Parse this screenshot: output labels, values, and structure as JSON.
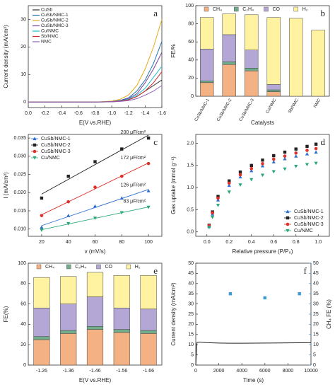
{
  "chart_data": [
    {
      "type": "line",
      "label": "a",
      "xlabel": "E(V vs.RHE)",
      "ylabel": "Current density (mA/cm²)",
      "x": [
        0,
        -0.4,
        -0.8,
        -1.0,
        -1.1,
        -1.2,
        -1.3,
        -1.4,
        -1.5,
        -1.6
      ],
      "xlim": [
        0,
        -1.6
      ],
      "xticks": [
        {
          "value": 0,
          "label": "0.0"
        },
        -0.2,
        -0.4,
        -0.6,
        -0.8,
        {
          "value": -1,
          "label": "-1.0"
        },
        -1.2,
        -1.4,
        -1.6
      ],
      "ylim": [
        -2,
        35
      ],
      "yticks": [
        0,
        10,
        20,
        30
      ],
      "legend": "upper left",
      "series": [
        {
          "name": "CuSb",
          "color": "#333333",
          "values": [
            0,
            0,
            0,
            0.1,
            0.3,
            0.8,
            2,
            4,
            6,
            8
          ]
        },
        {
          "name": "CuSb/NMC-1",
          "color": "#1f77b4",
          "values": [
            0,
            0,
            0,
            0.2,
            0.6,
            1.5,
            4,
            8,
            14,
            22
          ]
        },
        {
          "name": "CuSb/NMC-2",
          "color": "#e6a817",
          "values": [
            0,
            0,
            0,
            0.3,
            1,
            2.5,
            6,
            12,
            20,
            30
          ]
        },
        {
          "name": "CuSb/NMC-3",
          "color": "#7b3fa0",
          "values": [
            0,
            0,
            0,
            0.2,
            0.5,
            1.3,
            3,
            7,
            12,
            18
          ]
        },
        {
          "name": "Cu/NMC",
          "color": "#17becf",
          "values": [
            0,
            0,
            0,
            0.1,
            0.4,
            1,
            2.5,
            5,
            9,
            13
          ]
        },
        {
          "name": "Sb/NMC",
          "color": "#d62728",
          "values": [
            0,
            0,
            0,
            0.1,
            0.3,
            0.8,
            2,
            4,
            7,
            11
          ]
        },
        {
          "name": "NMC",
          "color": "#9467bd",
          "values": [
            0,
            0,
            0,
            0.05,
            0.2,
            0.5,
            1.2,
            2.5,
            4,
            6
          ]
        }
      ]
    },
    {
      "type": "bar",
      "stacked": true,
      "label": "b",
      "xlabel": "Catalysts",
      "ylabel": "FE/%",
      "categories": [
        "CuSb/NMC-1",
        "CuSb/NMC-2",
        "CuSb/NMC-3",
        "Cu/NMC",
        "Sb/NMC",
        "NMC"
      ],
      "ylim": [
        0,
        100
      ],
      "yticks": [
        0,
        20,
        40,
        60,
        80,
        100
      ],
      "legend": "upper center",
      "series": [
        {
          "name": "CH₄",
          "color": "#f4b183",
          "values": [
            15,
            35,
            28,
            5,
            0,
            0
          ]
        },
        {
          "name": "C₂H₄",
          "color": "#70ad8a",
          "values": [
            2,
            3,
            3,
            2,
            0,
            0
          ]
        },
        {
          "name": "CO",
          "color": "#b4a7d6",
          "values": [
            35,
            30,
            20,
            6,
            0,
            0
          ]
        },
        {
          "name": "H₂",
          "color": "#fff2a0",
          "values": [
            35,
            23,
            39,
            74,
            86,
            73
          ]
        }
      ]
    },
    {
      "type": "scatter",
      "fit": true,
      "label": "c",
      "xlabel": "v (mV/s)",
      "ylabel": "I (mA/cm²)",
      "x": [
        20,
        40,
        60,
        80,
        100
      ],
      "xlim": [
        10,
        110
      ],
      "xticks": [
        20,
        40,
        60,
        80,
        100
      ],
      "ylim": [
        0.008,
        0.036
      ],
      "yticks": [
        {
          "value": 0.01,
          "label": "0.010"
        },
        0.015,
        {
          "value": 0.02,
          "label": "0.020"
        },
        0.025,
        {
          "value": 0.03,
          "label": "0.030"
        },
        0.035
      ],
      "legend": "upper left",
      "series": [
        {
          "name": "CuSb/NMC-1",
          "color": "#2e6fd1",
          "marker": "triangle",
          "annotation": "126 μF/cm²",
          "values": [
            0.0105,
            0.0137,
            0.0163,
            0.0185,
            0.0205
          ]
        },
        {
          "name": "CuSb/NMC-2",
          "color": "#222222",
          "marker": "square",
          "annotation": "200 μF/cm²",
          "values": [
            0.0185,
            0.0245,
            0.0285,
            0.032,
            0.035
          ]
        },
        {
          "name": "CuSb/NMC-3",
          "color": "#e0302a",
          "marker": "circle",
          "annotation": "172 μF/cm²",
          "values": [
            0.0137,
            0.0175,
            0.0215,
            0.0245,
            0.028
          ]
        },
        {
          "name": "Cu/NMC",
          "color": "#2aa876",
          "marker": "triangle-down",
          "annotation": "83 μF/cm²",
          "values": [
            0.0097,
            0.0115,
            0.013,
            0.0145,
            0.016
          ]
        }
      ]
    },
    {
      "type": "scatter",
      "label": "d",
      "xlabel": "Relative pressure (P/P₀)",
      "ylabel": "Gas uptake (mmol g⁻¹)",
      "x": [
        0.02,
        0.05,
        0.1,
        0.2,
        0.3,
        0.4,
        0.5,
        0.6,
        0.7,
        0.8,
        0.9,
        0.98
      ],
      "xlim": [
        -0.1,
        1.1
      ],
      "xticks": [
        {
          "value": 0,
          "label": "0.0"
        },
        0.2,
        0.4,
        0.6,
        0.8,
        {
          "value": 1,
          "label": "1.0"
        }
      ],
      "ylim": [
        -0.1,
        2.2
      ],
      "yticks": [
        {
          "value": 0,
          "label": "0.0"
        },
        0.5,
        {
          "value": 1,
          "label": "1.0"
        },
        1.5,
        {
          "value": 2,
          "label": "2.0"
        }
      ],
      "legend": "lower right",
      "series": [
        {
          "name": "CuSb/NMC-1",
          "color": "#2e6fd1",
          "marker": "triangle",
          "values": [
            0.12,
            0.4,
            0.72,
            1.05,
            1.24,
            1.38,
            1.49,
            1.58,
            1.65,
            1.71,
            1.76,
            1.8
          ]
        },
        {
          "name": "CuSb/NMC-2",
          "color": "#222222",
          "marker": "square",
          "values": [
            0.15,
            0.45,
            0.8,
            1.15,
            1.35,
            1.5,
            1.62,
            1.72,
            1.8,
            1.87,
            1.93,
            1.98
          ]
        },
        {
          "name": "CuSb/NMC-3",
          "color": "#e0302a",
          "marker": "circle",
          "values": [
            0.14,
            0.43,
            0.76,
            1.1,
            1.29,
            1.43,
            1.54,
            1.64,
            1.71,
            1.78,
            1.84,
            1.88
          ]
        },
        {
          "name": "Cu/NMC",
          "color": "#2aa876",
          "marker": "triangle-down",
          "values": [
            0.1,
            0.33,
            0.6,
            0.9,
            1.06,
            1.18,
            1.28,
            1.36,
            1.42,
            1.48,
            1.52,
            1.55
          ]
        }
      ]
    },
    {
      "type": "bar",
      "stacked": true,
      "label": "e",
      "xlabel": "E(V vs.RHE)",
      "ylabel": "FE(%)",
      "categories": [
        "-1.26",
        "-1.36",
        "-1.46",
        "-1.56",
        "-1.66"
      ],
      "ylim": [
        0,
        100
      ],
      "yticks": [
        0,
        20,
        40,
        60,
        80,
        100
      ],
      "legend": "upper center",
      "series": [
        {
          "name": "CH₄",
          "color": "#f4b183",
          "values": [
            25,
            31,
            35,
            32,
            31
          ]
        },
        {
          "name": "C₂H₄",
          "color": "#70ad8a",
          "values": [
            3,
            3,
            3,
            3,
            3
          ]
        },
        {
          "name": "CO",
          "color": "#b4a7d6",
          "values": [
            28,
            26,
            29,
            21,
            21
          ]
        },
        {
          "name": "H₂",
          "color": "#fff2a0",
          "values": [
            30,
            27,
            24,
            32,
            33
          ]
        }
      ]
    },
    {
      "type": "line",
      "label": "f",
      "xlabel": "Time (s)",
      "ylabel": "Current density (mA/cm²)",
      "y2label": "CH₄ FE (%)",
      "x": [
        0,
        100,
        300,
        500,
        1000,
        2000,
        3000,
        4000,
        6000,
        8000,
        10000
      ],
      "xlim": [
        0,
        10000
      ],
      "xticks": [
        0,
        2000,
        4000,
        6000,
        8000,
        10000
      ],
      "ylim": [
        0,
        50
      ],
      "yticks": [
        0,
        5,
        10,
        15,
        20,
        25,
        30,
        35,
        40,
        45,
        50
      ],
      "y2lim": [
        0,
        50
      ],
      "y2ticks": [
        0,
        5,
        10,
        15,
        20,
        25,
        30,
        35,
        40,
        45,
        50
      ],
      "y2color": "#3d9bd6",
      "series": [
        {
          "color": "#222222",
          "values": [
            0,
            11,
            11.3,
            11.2,
            11,
            10.8,
            10.7,
            10.7,
            10.8,
            10.9,
            11
          ]
        },
        {
          "color": "#3d9bd6",
          "axis": "y2",
          "marker": "square",
          "x": [
            3000,
            6000,
            9000
          ],
          "values": [
            35,
            33,
            35
          ]
        }
      ]
    }
  ]
}
